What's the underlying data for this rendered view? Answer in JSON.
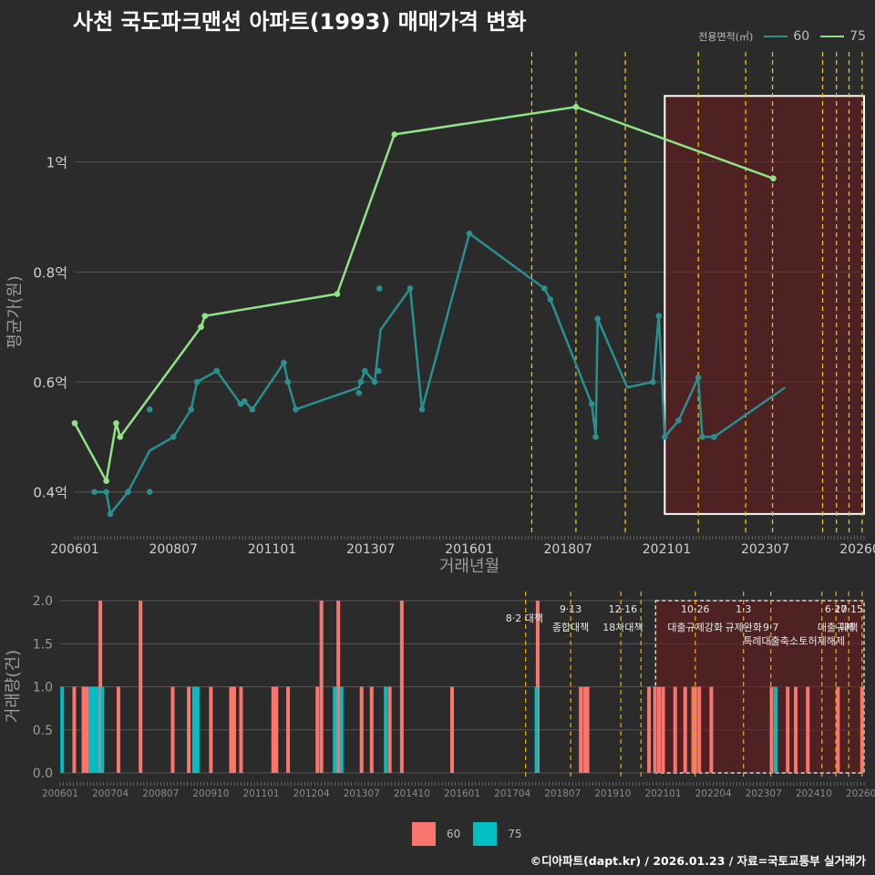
{
  "title": "사천 국도파크맨션 아파트(1993) 매매가격 변화",
  "footer": "©디아파트(dapt.kr) / 2026.01.23 / 자료=국토교통부 실거래가",
  "colors": {
    "background": "#2b2b2b",
    "grid": "#555555",
    "series_60_line": "#2a8f8f",
    "series_75_line": "#90e388",
    "bar_60": "#f8766d",
    "bar_75": "#00bfc4",
    "policy_line": "#e8c600",
    "highlight_fill": "#6b1c1c",
    "highlight_border": "#ffffff"
  },
  "legend_top": {
    "title": "전용면적(㎡)",
    "items": [
      {
        "label": "60",
        "color": "#2a8f8f"
      },
      {
        "label": "75",
        "color": "#90e388"
      }
    ]
  },
  "legend_bottom": {
    "items": [
      {
        "label": "60",
        "color": "#f8766d"
      },
      {
        "label": "75",
        "color": "#00bfc4"
      }
    ]
  },
  "chart_data": [
    {
      "type": "line",
      "title": "사천 국도파크맨션 아파트(1993) 매매가격 변화",
      "xlabel": "거래년월",
      "ylabel": "평균가(원)",
      "x_domain": [
        2006.0,
        2026.0
      ],
      "ylim": [
        0.32,
        1.2
      ],
      "yticks": [
        {
          "value": 0.4,
          "label": "0.4억"
        },
        {
          "value": 0.6,
          "label": "0.6억"
        },
        {
          "value": 0.8,
          "label": "0.8억"
        },
        {
          "value": 1.0,
          "label": "1억"
        }
      ],
      "xticks": [
        {
          "value": 2006.0,
          "label": "200601"
        },
        {
          "value": 2008.5,
          "label": "200807"
        },
        {
          "value": 2011.0,
          "label": "201101"
        },
        {
          "value": 2013.5,
          "label": "201307"
        },
        {
          "value": 2016.0,
          "label": "201601"
        },
        {
          "value": 2018.5,
          "label": "201807"
        },
        {
          "value": 2021.0,
          "label": "202101"
        },
        {
          "value": 2023.5,
          "label": "202307"
        },
        {
          "value": 2026.0,
          "label": "202601"
        }
      ],
      "highlight_range": {
        "x": [
          2020.95,
          2026.0
        ],
        "y": [
          0.36,
          1.12
        ]
      },
      "policy_lines": [
        2017.58,
        2018.7,
        2019.95,
        2021.8,
        2023.0,
        2023.68,
        2024.95,
        2025.3,
        2025.62,
        2025.95
      ],
      "series": [
        {
          "name": "60",
          "line": [
            [
              2006.5,
              0.4
            ],
            [
              2006.8,
              0.4
            ],
            [
              2006.9,
              0.36
            ],
            [
              2007.35,
              0.4
            ],
            [
              2007.9,
              0.475
            ],
            [
              2008.5,
              0.5
            ],
            [
              2008.95,
              0.55
            ],
            [
              2009.1,
              0.6
            ],
            [
              2009.6,
              0.62
            ],
            [
              2010.2,
              0.56
            ],
            [
              2010.3,
              0.565
            ],
            [
              2010.5,
              0.55
            ],
            [
              2011.3,
              0.635
            ],
            [
              2011.4,
              0.6
            ],
            [
              2011.6,
              0.55
            ],
            [
              2013.2,
              0.59
            ],
            [
              2013.35,
              0.62
            ],
            [
              2013.6,
              0.6
            ],
            [
              2013.75,
              0.695
            ],
            [
              2014.5,
              0.77
            ],
            [
              2014.8,
              0.55
            ],
            [
              2016.0,
              0.87
            ],
            [
              2017.9,
              0.77
            ],
            [
              2018.05,
              0.75
            ],
            [
              2019.1,
              0.56
            ],
            [
              2019.2,
              0.5
            ],
            [
              2019.25,
              0.715
            ],
            [
              2020.0,
              0.59
            ],
            [
              2020.65,
              0.6
            ],
            [
              2020.8,
              0.72
            ],
            [
              2020.95,
              0.5
            ],
            [
              2021.3,
              0.53
            ],
            [
              2021.8,
              0.608
            ],
            [
              2021.9,
              0.5
            ],
            [
              2022.2,
              0.5
            ],
            [
              2024.0,
              0.59
            ]
          ],
          "points": [
            [
              2006.5,
              0.4
            ],
            [
              2006.8,
              0.4
            ],
            [
              2006.9,
              0.36
            ],
            [
              2007.35,
              0.4
            ],
            [
              2007.9,
              0.55
            ],
            [
              2007.9,
              0.4
            ],
            [
              2008.5,
              0.5
            ],
            [
              2008.95,
              0.55
            ],
            [
              2009.1,
              0.6
            ],
            [
              2009.6,
              0.62
            ],
            [
              2010.2,
              0.56
            ],
            [
              2010.3,
              0.565
            ],
            [
              2010.5,
              0.55
            ],
            [
              2011.3,
              0.635
            ],
            [
              2011.4,
              0.6
            ],
            [
              2011.6,
              0.55
            ],
            [
              2013.2,
              0.58
            ],
            [
              2013.25,
              0.6
            ],
            [
              2013.35,
              0.62
            ],
            [
              2013.6,
              0.6
            ],
            [
              2013.7,
              0.62
            ],
            [
              2013.72,
              0.77
            ],
            [
              2014.5,
              0.77
            ],
            [
              2014.8,
              0.55
            ],
            [
              2016.0,
              0.87
            ],
            [
              2017.9,
              0.77
            ],
            [
              2018.05,
              0.75
            ],
            [
              2019.1,
              0.56
            ],
            [
              2019.2,
              0.5
            ],
            [
              2019.25,
              0.715
            ],
            [
              2020.65,
              0.6
            ],
            [
              2020.8,
              0.72
            ],
            [
              2020.95,
              0.5
            ],
            [
              2021.3,
              0.53
            ],
            [
              2021.8,
              0.608
            ],
            [
              2021.9,
              0.5
            ],
            [
              2022.2,
              0.5
            ]
          ]
        },
        {
          "name": "75",
          "line": [
            [
              2006.0,
              0.525
            ],
            [
              2006.8,
              0.42
            ],
            [
              2007.05,
              0.525
            ],
            [
              2007.15,
              0.5
            ],
            [
              2009.2,
              0.7
            ],
            [
              2009.3,
              0.72
            ],
            [
              2012.65,
              0.76
            ],
            [
              2014.1,
              1.05
            ],
            [
              2018.7,
              1.1
            ],
            [
              2023.7,
              0.97
            ]
          ],
          "points": [
            [
              2006.0,
              0.525
            ],
            [
              2006.8,
              0.42
            ],
            [
              2007.05,
              0.525
            ],
            [
              2007.15,
              0.5
            ],
            [
              2009.2,
              0.7
            ],
            [
              2009.3,
              0.72
            ],
            [
              2012.65,
              0.76
            ],
            [
              2014.1,
              1.05
            ],
            [
              2018.7,
              1.1
            ],
            [
              2023.7,
              0.97
            ]
          ]
        }
      ]
    },
    {
      "type": "bar",
      "xlabel": "",
      "ylabel": "거래량(건)",
      "x_domain": [
        2006.0,
        2026.0
      ],
      "ylim": [
        0,
        2.0
      ],
      "yticks": [
        {
          "value": 0.0,
          "label": "0.0"
        },
        {
          "value": 0.5,
          "label": "0.5"
        },
        {
          "value": 1.0,
          "label": "1.0"
        },
        {
          "value": 1.5,
          "label": "1.5"
        },
        {
          "value": 2.0,
          "label": "2.0"
        }
      ],
      "xticks": [
        {
          "value": 2006.0,
          "label": "200601"
        },
        {
          "value": 2007.25,
          "label": "200704"
        },
        {
          "value": 2008.5,
          "label": "200807"
        },
        {
          "value": 2009.75,
          "label": "200910"
        },
        {
          "value": 2011.0,
          "label": "201101"
        },
        {
          "value": 2012.25,
          "label": "201204"
        },
        {
          "value": 2013.5,
          "label": "201307"
        },
        {
          "value": 2014.75,
          "label": "201410"
        },
        {
          "value": 2016.0,
          "label": "201601"
        },
        {
          "value": 2017.25,
          "label": "201704"
        },
        {
          "value": 2018.5,
          "label": "201807"
        },
        {
          "value": 2019.75,
          "label": "201910"
        },
        {
          "value": 2021.0,
          "label": "202101"
        },
        {
          "value": 2022.25,
          "label": "202204"
        },
        {
          "value": 2023.5,
          "label": "202307"
        },
        {
          "value": 2024.75,
          "label": "202410"
        },
        {
          "value": 2026.0,
          "label": "202601"
        }
      ],
      "highlight_range": {
        "x": [
          2020.95,
          2026.0
        ],
        "y": [
          0,
          2.0
        ]
      },
      "policy_lines": [
        2017.58,
        2018.7,
        2019.95,
        2020.45,
        2021.8,
        2023.0,
        2023.68,
        2024.95,
        2025.3,
        2025.62,
        2025.95
      ],
      "annotations": [
        {
          "x": 2017.55,
          "row": 1,
          "text": "8·2 대책"
        },
        {
          "x": 2018.7,
          "row": 0,
          "text": "9·13"
        },
        {
          "x": 2018.7,
          "row": 2,
          "text": "종합대책"
        },
        {
          "x": 2020.0,
          "row": 0,
          "text": "12·16"
        },
        {
          "x": 2020.0,
          "row": 2,
          "text": "18차대책"
        },
        {
          "x": 2021.8,
          "row": 0,
          "text": "10·26"
        },
        {
          "x": 2021.8,
          "row": 2,
          "text": "대출규제강화"
        },
        {
          "x": 2023.0,
          "row": 0,
          "text": "1·3"
        },
        {
          "x": 2023.0,
          "row": 2,
          "text": "규제완화"
        },
        {
          "x": 2023.68,
          "row": 2,
          "text": "9·7"
        },
        {
          "x": 2023.68,
          "row": 3,
          "text": "특례대출축소"
        },
        {
          "x": 2024.95,
          "row": 3,
          "text": "토허제해제"
        },
        {
          "x": 2025.3,
          "row": 0,
          "text": "6·27"
        },
        {
          "x": 2025.3,
          "row": 2,
          "text": "대출규제"
        },
        {
          "x": 2025.62,
          "row": 0,
          "text": "10·15"
        },
        {
          "x": 2025.62,
          "row": 2,
          "text": "대책"
        }
      ],
      "series": [
        {
          "name": "60",
          "bars": [
            [
              2006.35,
              1
            ],
            [
              2006.58,
              1
            ],
            [
              2006.67,
              1
            ],
            [
              2007.0,
              2
            ],
            [
              2007.45,
              1
            ],
            [
              2008.0,
              2
            ],
            [
              2008.8,
              1
            ],
            [
              2009.2,
              1
            ],
            [
              2009.35,
              1
            ],
            [
              2009.75,
              1
            ],
            [
              2010.25,
              1
            ],
            [
              2010.33,
              1
            ],
            [
              2010.5,
              1
            ],
            [
              2011.3,
              1
            ],
            [
              2011.38,
              1
            ],
            [
              2011.67,
              1
            ],
            [
              2012.4,
              1
            ],
            [
              2012.5,
              2
            ],
            [
              2012.92,
              2
            ],
            [
              2013.5,
              1
            ],
            [
              2013.75,
              1
            ],
            [
              2014.2,
              1
            ],
            [
              2014.5,
              2
            ],
            [
              2015.75,
              1
            ],
            [
              2017.88,
              2
            ],
            [
              2018.95,
              1
            ],
            [
              2019.05,
              1
            ],
            [
              2019.12,
              1
            ],
            [
              2020.65,
              1
            ],
            [
              2020.8,
              1
            ],
            [
              2020.9,
              1
            ],
            [
              2021.0,
              1
            ],
            [
              2021.3,
              1
            ],
            [
              2021.55,
              1
            ],
            [
              2021.75,
              1
            ],
            [
              2021.8,
              1
            ],
            [
              2021.9,
              1
            ],
            [
              2022.2,
              1
            ],
            [
              2023.7,
              1
            ],
            [
              2024.1,
              1
            ],
            [
              2024.3,
              1
            ],
            [
              2024.6,
              1
            ],
            [
              2025.35,
              1
            ],
            [
              2025.95,
              1
            ]
          ]
        },
        {
          "name": "75",
          "bars": [
            [
              2006.05,
              1
            ],
            [
              2006.75,
              1
            ],
            [
              2006.83,
              1
            ],
            [
              2006.92,
              1
            ],
            [
              2007.05,
              1
            ],
            [
              2009.33,
              1
            ],
            [
              2009.42,
              1
            ],
            [
              2012.83,
              1
            ],
            [
              2013.0,
              1
            ],
            [
              2014.1,
              1
            ],
            [
              2017.85,
              1
            ],
            [
              2023.8,
              1
            ]
          ]
        }
      ]
    }
  ]
}
